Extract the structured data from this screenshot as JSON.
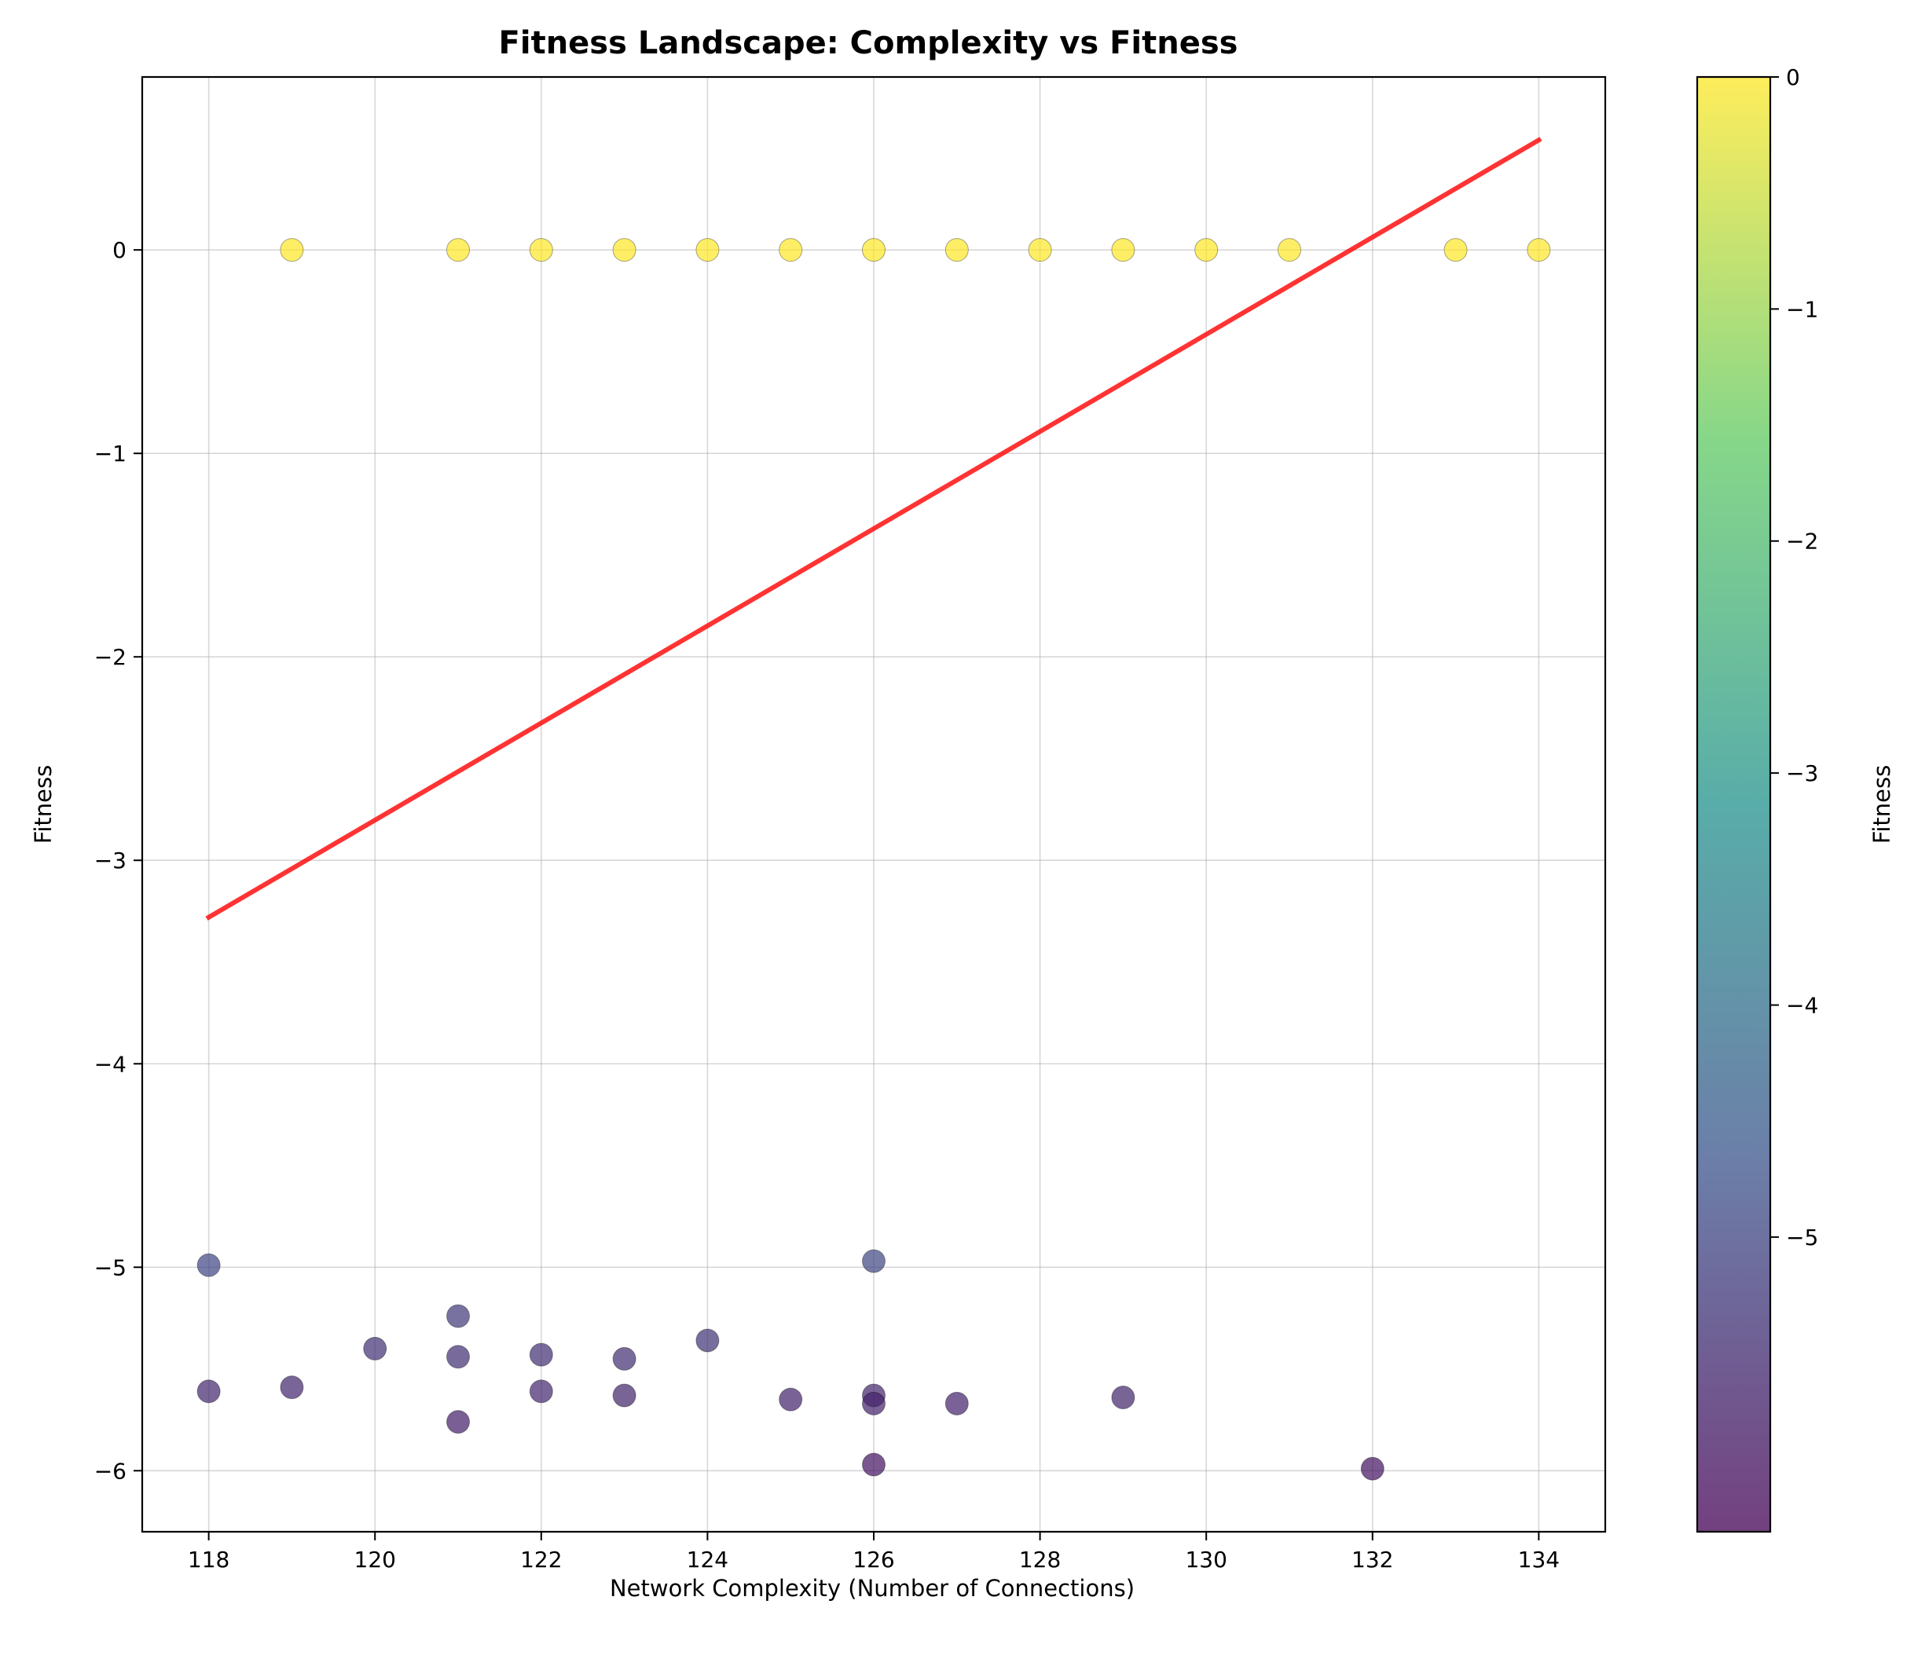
{
  "chart_data": {
    "type": "scatter",
    "title": "Fitness Landscape: Complexity vs Fitness",
    "xlabel": "Network Complexity (Number of Connections)",
    "ylabel": "Fitness",
    "xlim": [
      117.2,
      134.8
    ],
    "ylim": [
      -6.3,
      0.85
    ],
    "grid": true,
    "x_ticks": [
      118,
      120,
      122,
      124,
      126,
      128,
      130,
      132,
      134
    ],
    "y_ticks": [
      0,
      -1,
      -2,
      -3,
      -4,
      -5,
      -6
    ],
    "x_tick_labels": [
      "118",
      "120",
      "122",
      "124",
      "126",
      "128",
      "130",
      "132",
      "134"
    ],
    "y_tick_labels": [
      "0",
      "−1",
      "−2",
      "−3",
      "−4",
      "−5",
      "−6"
    ],
    "colormap": "viridis",
    "colorbar": {
      "label": "Fitness",
      "range": [
        -6.27,
        0
      ],
      "ticks": [
        0,
        -1,
        -2,
        -3,
        -4,
        -5
      ],
      "tick_labels": [
        "0",
        "−1",
        "−2",
        "−3",
        "−4",
        "−5"
      ]
    },
    "series": [
      {
        "points": [
          [
            119,
            0
          ],
          [
            121,
            0
          ],
          [
            122,
            0
          ],
          [
            123,
            0
          ],
          [
            124,
            0
          ],
          [
            125,
            0
          ],
          [
            126,
            0
          ],
          [
            127,
            0
          ],
          [
            128,
            0
          ],
          [
            129,
            0
          ],
          [
            130,
            0
          ],
          [
            131,
            0
          ],
          [
            133,
            0
          ],
          [
            134,
            0
          ],
          [
            118,
            -4.99
          ],
          [
            126,
            -4.97
          ],
          [
            121,
            -5.24
          ],
          [
            118,
            -5.61
          ],
          [
            119,
            -5.59
          ],
          [
            120,
            -5.4
          ],
          [
            121,
            -5.44
          ],
          [
            121,
            -5.76
          ],
          [
            122,
            -5.43
          ],
          [
            122,
            -5.61
          ],
          [
            123,
            -5.45
          ],
          [
            123,
            -5.63
          ],
          [
            124,
            -5.36
          ],
          [
            125,
            -5.65
          ],
          [
            126,
            -5.63
          ],
          [
            126,
            -5.67
          ],
          [
            126,
            -5.97
          ],
          [
            127,
            -5.67
          ],
          [
            129,
            -5.64
          ],
          [
            132,
            -5.99
          ]
        ]
      }
    ],
    "trendline": {
      "x": [
        118,
        134
      ],
      "y": [
        -3.28,
        0.54
      ],
      "color": "#ff0000"
    }
  }
}
